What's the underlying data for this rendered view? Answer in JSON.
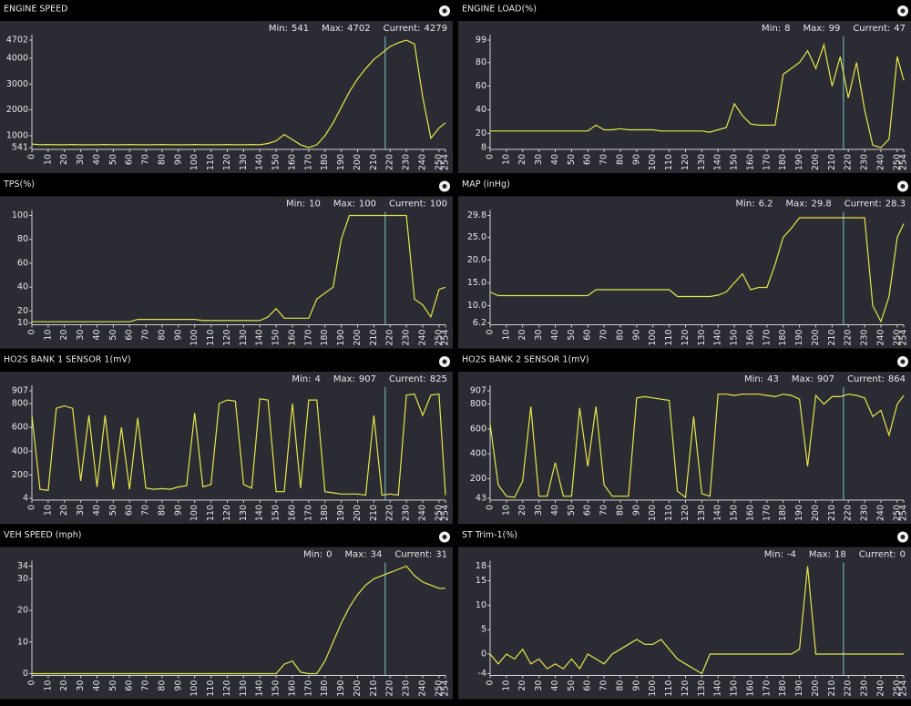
{
  "chart_data": [
    {
      "type": "line",
      "title": "ENGINE SPEED",
      "color": "#e6e64c",
      "cursor": 217,
      "stats": [
        {
          "label": "Min:",
          "value": 541
        },
        {
          "label": "Max:",
          "value": 4702
        },
        {
          "label": "Current:",
          "value": 4279
        }
      ],
      "xlim": [
        0,
        254
      ],
      "xticks": [
        0,
        10,
        20,
        30,
        40,
        50,
        60,
        70,
        80,
        90,
        100,
        110,
        120,
        130,
        140,
        150,
        160,
        170,
        180,
        190,
        200,
        210,
        220,
        230,
        240,
        250,
        254
      ],
      "ylim": [
        541,
        4702
      ],
      "yticks": [
        541,
        1000,
        2000,
        3000,
        4000,
        4702
      ],
      "x": [
        0,
        5,
        10,
        15,
        20,
        25,
        30,
        35,
        40,
        45,
        50,
        55,
        60,
        65,
        70,
        75,
        80,
        85,
        90,
        95,
        100,
        105,
        110,
        115,
        120,
        125,
        130,
        135,
        140,
        145,
        150,
        155,
        160,
        165,
        170,
        175,
        180,
        185,
        190,
        195,
        200,
        205,
        210,
        215,
        220,
        225,
        230,
        235,
        240,
        245,
        250,
        254
      ],
      "values": [
        680,
        650,
        660,
        650,
        650,
        660,
        650,
        650,
        650,
        660,
        650,
        650,
        660,
        650,
        650,
        650,
        660,
        650,
        650,
        650,
        660,
        650,
        650,
        650,
        660,
        650,
        650,
        660,
        650,
        700,
        800,
        1050,
        850,
        650,
        541,
        650,
        1000,
        1500,
        2100,
        2700,
        3200,
        3600,
        3950,
        4200,
        4450,
        4600,
        4700,
        4550,
        2500,
        900,
        1300,
        1500
      ]
    },
    {
      "type": "line",
      "title": "ENGINE LOAD(%)",
      "color": "#e6e64c",
      "cursor": 217,
      "stats": [
        {
          "label": "Min:",
          "value": 8
        },
        {
          "label": "Max:",
          "value": 99
        },
        {
          "label": "Current:",
          "value": 47
        }
      ],
      "xlim": [
        0,
        254
      ],
      "xticks": [
        0,
        10,
        20,
        30,
        40,
        50,
        60,
        70,
        80,
        90,
        100,
        110,
        120,
        130,
        140,
        150,
        160,
        170,
        180,
        190,
        200,
        210,
        220,
        230,
        240,
        250,
        254
      ],
      "ylim": [
        8,
        99
      ],
      "yticks": [
        8,
        20,
        40,
        60,
        80,
        99
      ],
      "x": [
        0,
        5,
        10,
        15,
        20,
        25,
        30,
        35,
        40,
        45,
        50,
        55,
        60,
        65,
        70,
        75,
        80,
        85,
        90,
        95,
        100,
        105,
        110,
        115,
        120,
        125,
        130,
        135,
        140,
        145,
        150,
        155,
        160,
        165,
        170,
        175,
        180,
        185,
        190,
        195,
        200,
        205,
        210,
        215,
        220,
        225,
        230,
        235,
        240,
        245,
        250,
        254
      ],
      "values": [
        22,
        22,
        22,
        22,
        22,
        22,
        22,
        22,
        22,
        22,
        22,
        22,
        22,
        27,
        23,
        23,
        24,
        23,
        23,
        23,
        23,
        22,
        22,
        22,
        22,
        22,
        22,
        21,
        23,
        25,
        45,
        35,
        28,
        27,
        27,
        27,
        70,
        75,
        80,
        90,
        75,
        95,
        60,
        85,
        50,
        80,
        40,
        10,
        8,
        15,
        85,
        65
      ]
    },
    {
      "type": "line",
      "title": "TPS(%)",
      "color": "#e6e64c",
      "cursor": 217,
      "stats": [
        {
          "label": "Min:",
          "value": 10
        },
        {
          "label": "Max:",
          "value": 100
        },
        {
          "label": "Current:",
          "value": 100
        }
      ],
      "xlim": [
        0,
        254
      ],
      "xticks": [
        0,
        10,
        20,
        30,
        40,
        50,
        60,
        70,
        80,
        90,
        100,
        110,
        120,
        130,
        140,
        150,
        160,
        170,
        180,
        190,
        200,
        210,
        220,
        230,
        240,
        250,
        254
      ],
      "ylim": [
        10,
        100
      ],
      "yticks": [
        10,
        20,
        40,
        60,
        80,
        100
      ],
      "x": [
        0,
        5,
        10,
        15,
        20,
        25,
        30,
        35,
        40,
        45,
        50,
        55,
        60,
        65,
        70,
        75,
        80,
        85,
        90,
        95,
        100,
        105,
        110,
        115,
        120,
        125,
        130,
        135,
        140,
        145,
        150,
        155,
        160,
        165,
        170,
        175,
        180,
        185,
        190,
        195,
        200,
        205,
        210,
        215,
        220,
        225,
        230,
        235,
        240,
        245,
        250,
        254
      ],
      "values": [
        11,
        11,
        11,
        11,
        11,
        11,
        11,
        11,
        11,
        11,
        11,
        11,
        11,
        13,
        13,
        13,
        13,
        13,
        13,
        13,
        13,
        12,
        12,
        12,
        12,
        12,
        12,
        12,
        12,
        15,
        22,
        14,
        14,
        14,
        14,
        30,
        35,
        40,
        80,
        100,
        100,
        100,
        100,
        100,
        100,
        100,
        100,
        30,
        25,
        15,
        38,
        40
      ]
    },
    {
      "type": "line",
      "title": "MAP (inHg)",
      "color": "#e6e64c",
      "cursor": 217,
      "stats": [
        {
          "label": "Min:",
          "value": 6.2
        },
        {
          "label": "Max:",
          "value": 29.8
        },
        {
          "label": "Current:",
          "value": 28.3
        }
      ],
      "xlim": [
        0,
        254
      ],
      "xticks": [
        0,
        10,
        20,
        30,
        40,
        50,
        60,
        70,
        80,
        90,
        100,
        110,
        120,
        130,
        140,
        150,
        160,
        170,
        180,
        190,
        200,
        210,
        220,
        230,
        240,
        250,
        254
      ],
      "ylim": [
        6.2,
        29.8
      ],
      "yticks": [
        6.2,
        {
          "value": 10,
          "label": "10.0"
        },
        {
          "value": 15,
          "label": "15.0"
        },
        {
          "value": 20,
          "label": "20.0"
        },
        {
          "value": 25,
          "label": "25.0"
        },
        29.8
      ],
      "x": [
        0,
        5,
        10,
        15,
        20,
        25,
        30,
        35,
        40,
        45,
        50,
        55,
        60,
        65,
        70,
        75,
        80,
        85,
        90,
        95,
        100,
        105,
        110,
        115,
        120,
        125,
        130,
        135,
        140,
        145,
        150,
        155,
        160,
        165,
        170,
        175,
        180,
        185,
        190,
        195,
        200,
        205,
        210,
        215,
        220,
        225,
        230,
        235,
        240,
        245,
        250,
        254
      ],
      "values": [
        13,
        12.2,
        12.2,
        12.2,
        12.2,
        12.2,
        12.2,
        12.2,
        12.2,
        12.2,
        12.2,
        12.2,
        12.2,
        13.5,
        13.5,
        13.5,
        13.5,
        13.5,
        13.5,
        13.5,
        13.5,
        13.5,
        13.5,
        12,
        12,
        12,
        12,
        12,
        12.3,
        13,
        15,
        17,
        13.5,
        14,
        14,
        19,
        25,
        27,
        29.3,
        29.3,
        29.3,
        29.3,
        29.3,
        29.3,
        29.3,
        29.3,
        29.3,
        10,
        6.5,
        12,
        25,
        28
      ]
    },
    {
      "type": "line",
      "title": "HO2S BANK 1 SENSOR 1(mV)",
      "color": "#e6e64c",
      "cursor": 217,
      "stats": [
        {
          "label": "Min:",
          "value": 4
        },
        {
          "label": "Max:",
          "value": 907
        },
        {
          "label": "Current:",
          "value": 825
        }
      ],
      "xlim": [
        0,
        254
      ],
      "xticks": [
        0,
        10,
        20,
        30,
        40,
        50,
        60,
        70,
        80,
        90,
        100,
        110,
        120,
        130,
        140,
        150,
        160,
        170,
        180,
        190,
        200,
        210,
        220,
        230,
        240,
        250,
        254
      ],
      "ylim": [
        4,
        907
      ],
      "yticks": [
        4,
        200,
        400,
        600,
        800,
        907
      ],
      "x": [
        0,
        5,
        10,
        15,
        20,
        25,
        30,
        35,
        40,
        45,
        50,
        55,
        60,
        65,
        70,
        75,
        80,
        85,
        90,
        95,
        100,
        105,
        110,
        115,
        120,
        125,
        130,
        135,
        140,
        145,
        150,
        155,
        160,
        165,
        170,
        175,
        180,
        185,
        190,
        195,
        200,
        205,
        210,
        215,
        220,
        225,
        230,
        235,
        240,
        245,
        250,
        254
      ],
      "values": [
        700,
        80,
        70,
        760,
        780,
        760,
        150,
        700,
        100,
        700,
        80,
        600,
        80,
        680,
        90,
        80,
        85,
        80,
        100,
        110,
        720,
        100,
        120,
        800,
        830,
        820,
        120,
        90,
        840,
        830,
        60,
        60,
        800,
        90,
        830,
        830,
        60,
        50,
        40,
        40,
        40,
        30,
        700,
        30,
        40,
        30,
        870,
        880,
        700,
        870,
        880,
        30
      ]
    },
    {
      "type": "line",
      "title": "HO2S BANK 2 SENSOR 1(mV)",
      "color": "#e6e64c",
      "cursor": 217,
      "stats": [
        {
          "label": "Min:",
          "value": 43
        },
        {
          "label": "Max:",
          "value": 907
        },
        {
          "label": "Current:",
          "value": 864
        }
      ],
      "xlim": [
        0,
        254
      ],
      "xticks": [
        0,
        10,
        20,
        30,
        40,
        50,
        60,
        70,
        80,
        90,
        100,
        110,
        120,
        130,
        140,
        150,
        160,
        170,
        180,
        190,
        200,
        210,
        220,
        230,
        240,
        250,
        254
      ],
      "ylim": [
        43,
        907
      ],
      "yticks": [
        43,
        200,
        400,
        600,
        800,
        907
      ],
      "x": [
        0,
        5,
        10,
        15,
        20,
        25,
        30,
        35,
        40,
        45,
        50,
        55,
        60,
        65,
        70,
        75,
        80,
        85,
        90,
        95,
        100,
        105,
        110,
        115,
        120,
        125,
        130,
        135,
        140,
        145,
        150,
        155,
        160,
        165,
        170,
        175,
        180,
        185,
        190,
        195,
        200,
        205,
        210,
        215,
        220,
        225,
        230,
        235,
        240,
        245,
        250,
        254
      ],
      "values": [
        640,
        150,
        60,
        50,
        180,
        780,
        60,
        60,
        330,
        60,
        60,
        770,
        300,
        780,
        150,
        60,
        60,
        60,
        850,
        860,
        850,
        840,
        830,
        100,
        50,
        700,
        80,
        60,
        880,
        880,
        870,
        880,
        880,
        880,
        870,
        860,
        880,
        870,
        840,
        300,
        870,
        800,
        860,
        860,
        880,
        870,
        850,
        700,
        750,
        550,
        800,
        870
      ]
    },
    {
      "type": "line",
      "title": "VEH SPEED (mph)",
      "color": "#e6e64c",
      "cursor": 217,
      "stats": [
        {
          "label": "Min:",
          "value": 0
        },
        {
          "label": "Max:",
          "value": 34
        },
        {
          "label": "Current:",
          "value": 31
        }
      ],
      "xlim": [
        0,
        254
      ],
      "xticks": [
        0,
        10,
        20,
        30,
        40,
        50,
        60,
        70,
        80,
        90,
        100,
        110,
        120,
        130,
        140,
        150,
        160,
        170,
        180,
        190,
        200,
        210,
        220,
        230,
        240,
        250,
        254
      ],
      "ylim": [
        0,
        34
      ],
      "yticks": [
        0,
        10,
        20,
        30,
        34
      ],
      "x": [
        0,
        5,
        10,
        15,
        20,
        25,
        30,
        35,
        40,
        45,
        50,
        55,
        60,
        65,
        70,
        75,
        80,
        85,
        90,
        95,
        100,
        105,
        110,
        115,
        120,
        125,
        130,
        135,
        140,
        145,
        150,
        155,
        160,
        165,
        170,
        175,
        180,
        185,
        190,
        195,
        200,
        205,
        210,
        215,
        220,
        225,
        230,
        235,
        240,
        245,
        250,
        254
      ],
      "values": [
        0,
        0,
        0,
        0,
        0,
        0,
        0,
        0,
        0,
        0,
        0,
        0,
        0,
        0,
        0,
        0,
        0,
        0,
        0,
        0,
        0,
        0,
        0,
        0,
        0,
        0,
        0,
        0,
        0,
        0,
        0,
        3,
        4,
        0.5,
        0,
        0,
        4,
        10,
        16,
        21,
        25,
        28,
        30,
        31,
        32,
        33,
        34,
        31,
        29,
        28,
        27,
        27
      ]
    },
    {
      "type": "line",
      "title": "ST Trim-1(%)",
      "color": "#e6e64c",
      "cursor": 217,
      "stats": [
        {
          "label": "Min:",
          "value": -4
        },
        {
          "label": "Max:",
          "value": 18
        },
        {
          "label": "Current:",
          "value": 0
        }
      ],
      "xlim": [
        0,
        254
      ],
      "xticks": [
        0,
        10,
        20,
        30,
        40,
        50,
        60,
        70,
        80,
        90,
        100,
        110,
        120,
        130,
        140,
        150,
        160,
        170,
        180,
        190,
        200,
        210,
        220,
        230,
        240,
        250,
        254
      ],
      "ylim": [
        -4,
        18
      ],
      "yticks": [
        -4,
        0,
        5,
        10,
        15,
        18
      ],
      "x": [
        0,
        5,
        10,
        15,
        20,
        25,
        30,
        35,
        40,
        45,
        50,
        55,
        60,
        65,
        70,
        75,
        80,
        85,
        90,
        95,
        100,
        105,
        110,
        115,
        120,
        125,
        130,
        135,
        140,
        145,
        150,
        155,
        160,
        165,
        170,
        175,
        180,
        185,
        190,
        195,
        200,
        205,
        210,
        215,
        220,
        225,
        230,
        235,
        240,
        245,
        250,
        254
      ],
      "values": [
        0,
        -2,
        0,
        -1,
        1,
        -2,
        -1,
        -3,
        -2,
        -3,
        -1,
        -3,
        0,
        -1,
        -2,
        0,
        1,
        2,
        3,
        2,
        2,
        3,
        1,
        -1,
        -2,
        -3,
        -4,
        0,
        0,
        0,
        0,
        0,
        0,
        0,
        0,
        0,
        0,
        0,
        1,
        18,
        0,
        0,
        0,
        0,
        0,
        0,
        0,
        0,
        0,
        0,
        0,
        0
      ]
    }
  ]
}
